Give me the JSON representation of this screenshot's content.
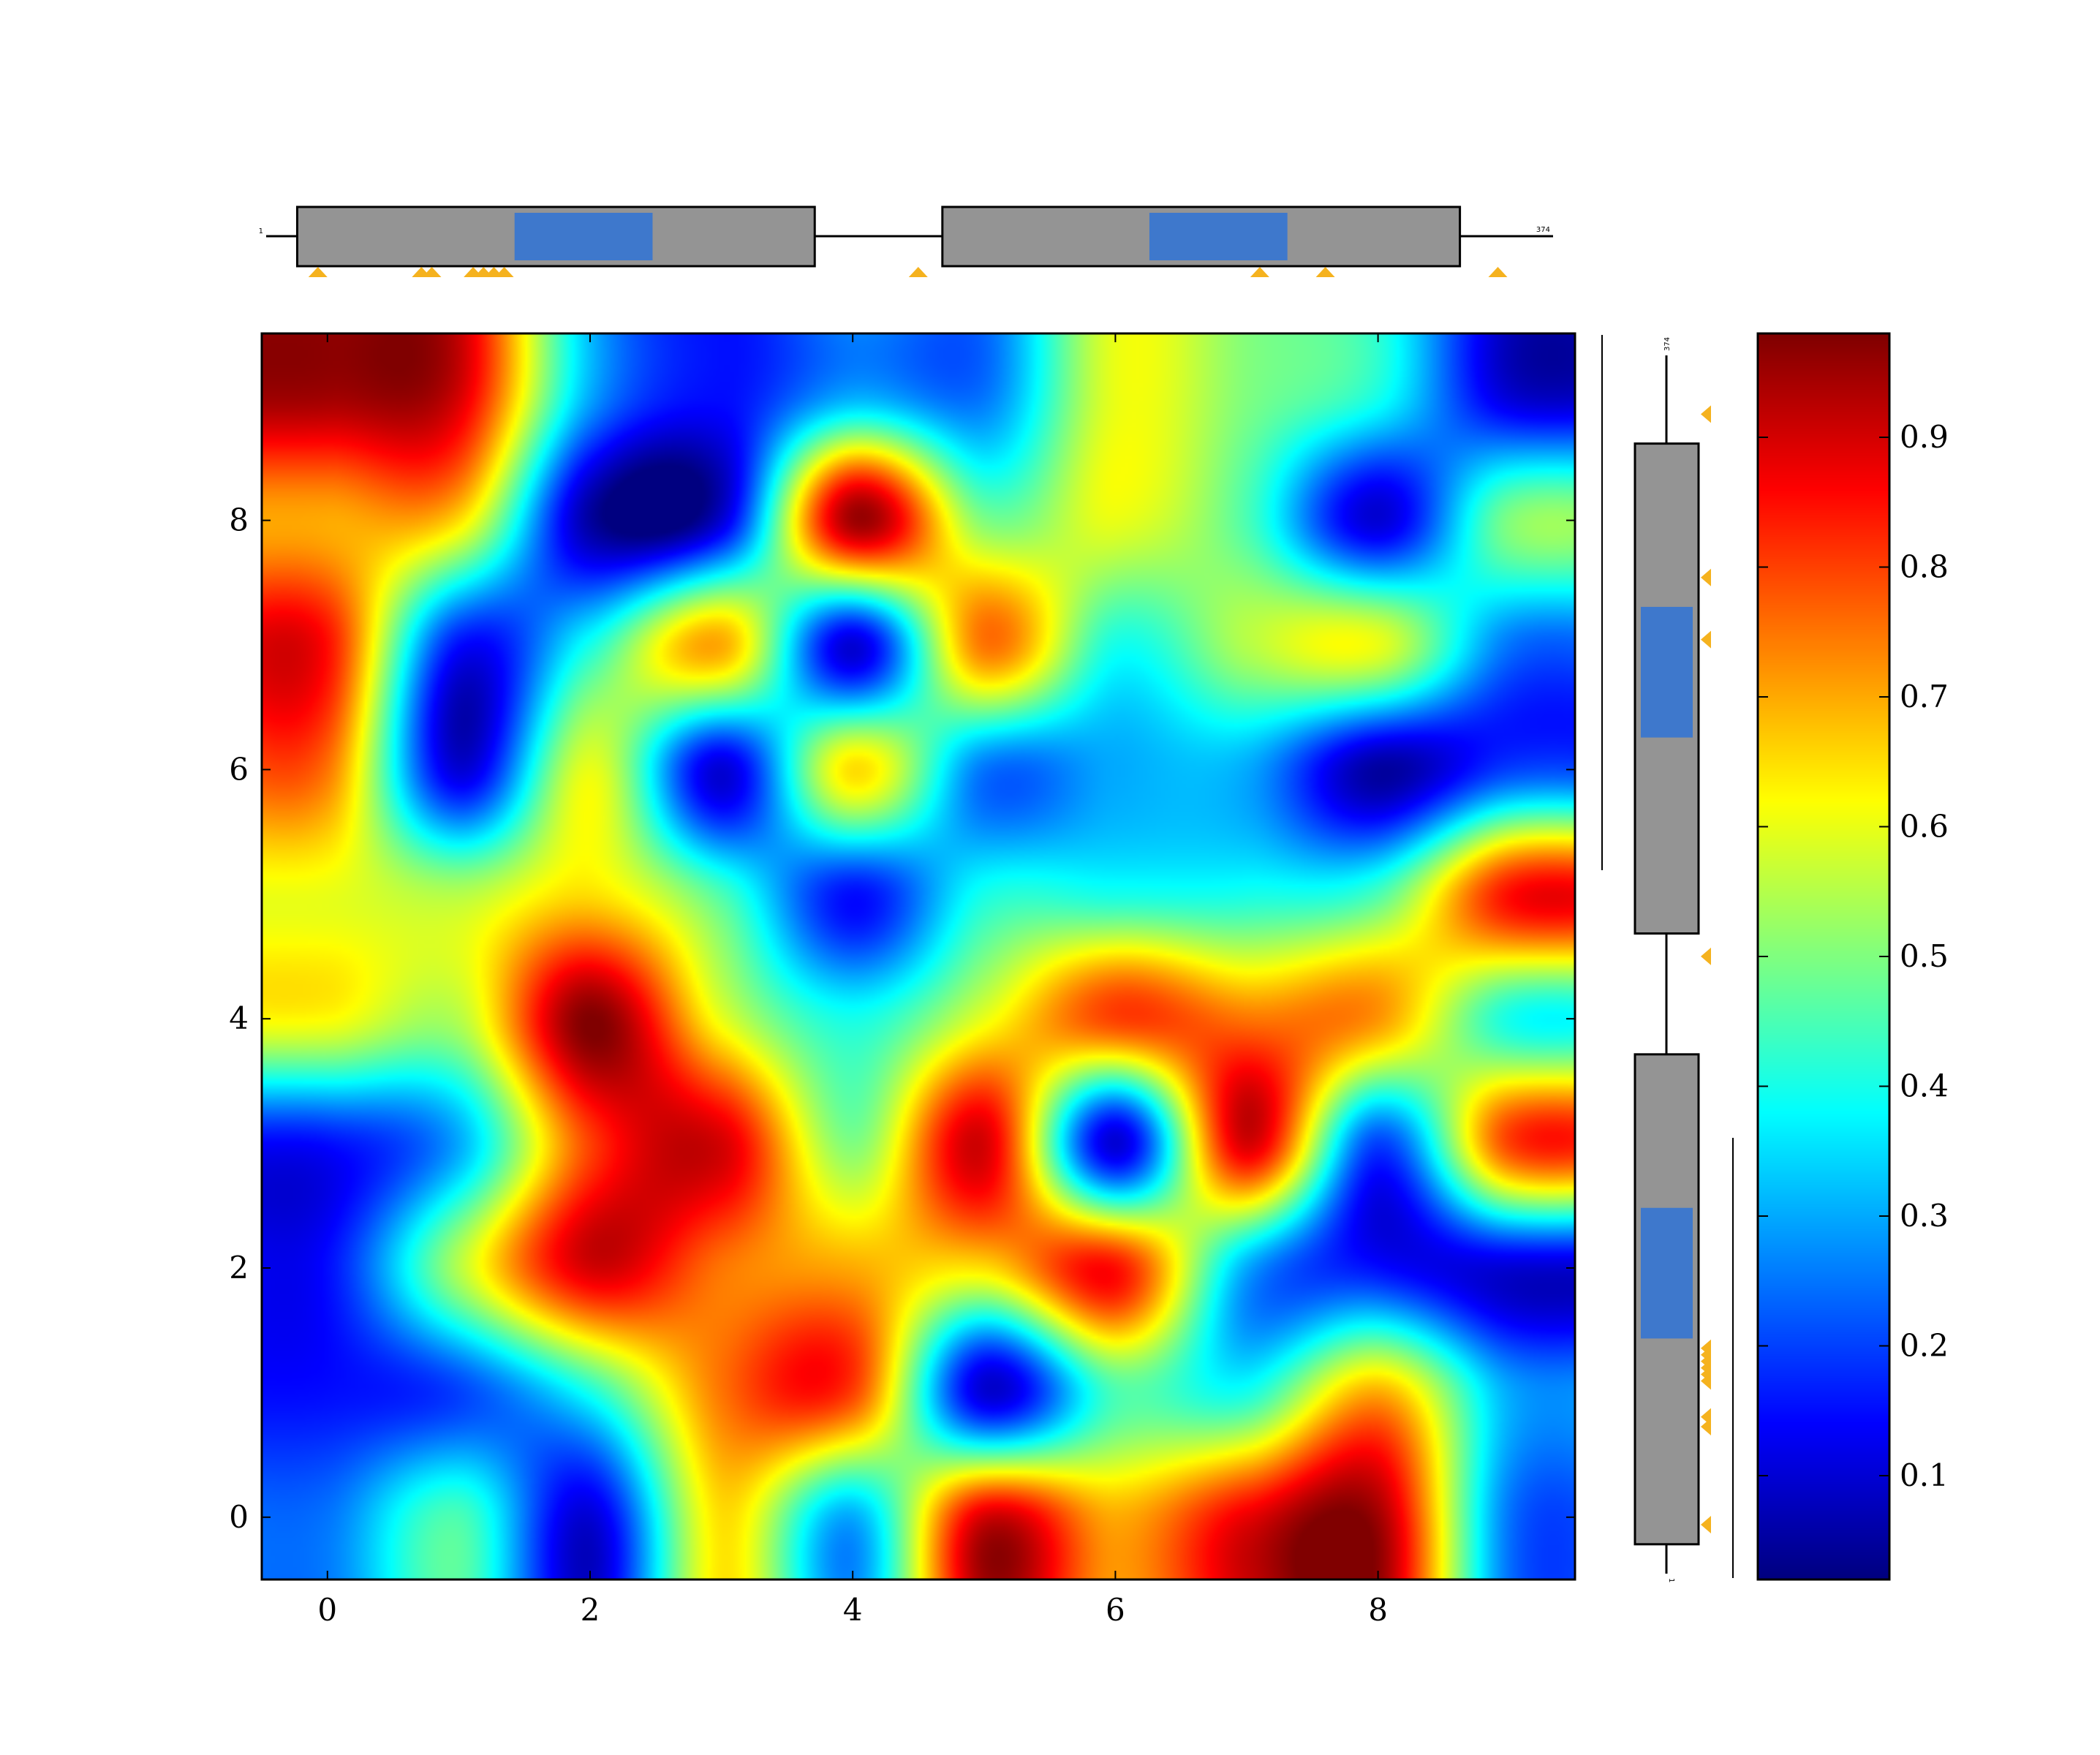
{
  "chart_data": [
    {
      "type": "heatmap",
      "title": "",
      "xlabel": "",
      "ylabel": "",
      "xlim": [
        -0.5,
        9.5
      ],
      "ylim": [
        -0.5,
        9.5
      ],
      "x_ticks": [
        0,
        2,
        4,
        6,
        8
      ],
      "y_ticks": [
        0,
        2,
        4,
        6,
        8
      ],
      "x_tick_labels": [
        "0",
        "2",
        "4",
        "6",
        "8"
      ],
      "y_tick_labels": [
        "0",
        "2",
        "4",
        "6",
        "8"
      ],
      "origin": "lower",
      "interpolation": "bicubic",
      "colormap": "jet",
      "grid": false,
      "rows_bottom_to_top": [
        [
          0.25,
          0.45,
          0.1,
          0.65,
          0.3,
          0.9,
          0.7,
          0.88,
          0.95,
          0.25
        ],
        [
          0.15,
          0.2,
          0.4,
          0.75,
          0.8,
          0.1,
          0.45,
          0.4,
          0.7,
          0.3
        ],
        [
          0.15,
          0.55,
          0.9,
          0.75,
          0.7,
          0.65,
          0.85,
          0.3,
          0.15,
          0.1
        ],
        [
          0.15,
          0.3,
          0.8,
          0.9,
          0.5,
          0.9,
          0.1,
          0.9,
          0.2,
          0.8
        ],
        [
          0.62,
          0.55,
          0.98,
          0.6,
          0.4,
          0.6,
          0.8,
          0.75,
          0.72,
          0.4
        ],
        [
          0.6,
          0.55,
          0.65,
          0.45,
          0.15,
          0.4,
          0.4,
          0.4,
          0.45,
          0.85
        ],
        [
          0.75,
          0.1,
          0.6,
          0.1,
          0.65,
          0.25,
          0.3,
          0.3,
          0.05,
          0.2
        ],
        [
          0.85,
          0.15,
          0.4,
          0.7,
          0.1,
          0.75,
          0.4,
          0.55,
          0.6,
          0.25
        ],
        [
          0.7,
          0.65,
          0.05,
          0.1,
          0.95,
          0.5,
          0.6,
          0.45,
          0.1,
          0.5
        ],
        [
          0.95,
          0.9,
          0.3,
          0.15,
          0.3,
          0.25,
          0.6,
          0.5,
          0.4,
          0.1
        ]
      ],
      "colorbar": {
        "ticks": [
          0.1,
          0.2,
          0.3,
          0.4,
          0.5,
          0.6,
          0.7,
          0.8,
          0.9
        ],
        "tick_labels": [
          "0.1",
          "0.2",
          "0.3",
          "0.4",
          "0.5",
          "0.6",
          "0.7",
          "0.8",
          "0.9"
        ],
        "range": [
          0.02,
          0.98
        ]
      }
    },
    {
      "type": "track",
      "orientation": "horizontal",
      "range": [
        1,
        374
      ],
      "start_label": "1",
      "end_label": "374",
      "segments": [
        [
          10,
          160
        ],
        [
          197,
          347
        ]
      ],
      "highlights": [
        [
          73,
          113
        ],
        [
          257,
          297
        ]
      ],
      "markers": [
        16,
        46,
        49,
        61,
        64,
        67,
        70,
        190,
        289,
        308,
        358
      ],
      "colors": {
        "segment": "#949494",
        "highlight": "#3e78cc",
        "marker": "#f5b21e"
      }
    },
    {
      "type": "track",
      "orientation": "vertical",
      "range": [
        1,
        374
      ],
      "start_label": "1",
      "end_label": "374",
      "segments": [
        [
          10,
          160
        ],
        [
          197,
          347
        ]
      ],
      "highlights": [
        [
          73,
          113
        ],
        [
          257,
          297
        ]
      ],
      "markers": [
        16,
        46,
        49,
        60,
        62,
        64,
        66,
        68,
        70,
        190,
        287,
        306,
        356
      ],
      "colors": {
        "segment": "#949494",
        "highlight": "#3e78cc",
        "marker": "#f5b21e"
      }
    }
  ]
}
